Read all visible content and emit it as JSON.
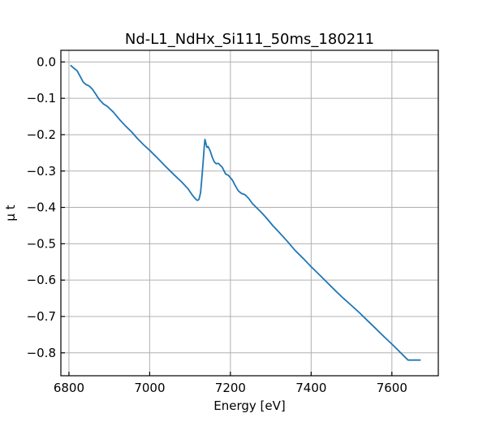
{
  "chart_data": {
    "type": "line",
    "title": "Nd-L1_NdHx_Si111_50ms_180211",
    "xlabel": "Energy [eV]",
    "ylabel": "μ t",
    "xlim": [
      6780,
      7715
    ],
    "ylim": [
      -0.863,
      0.032
    ],
    "xticks": [
      6800,
      7000,
      7200,
      7400,
      7600
    ],
    "yticks": [
      0.0,
      -0.1,
      -0.2,
      -0.3,
      -0.4,
      -0.5,
      -0.6,
      -0.7,
      -0.8
    ],
    "xtick_labels": [
      "6800",
      "7000",
      "7200",
      "7400",
      "7600"
    ],
    "ytick_labels": [
      "0.0",
      "−0.1",
      "−0.2",
      "−0.3",
      "−0.4",
      "−0.5",
      "−0.6",
      "−0.7",
      "−0.8"
    ],
    "grid": true,
    "series": [
      {
        "color": "#1f77b4",
        "x": [
          6805,
          6812,
          6820,
          6828,
          6835,
          6842,
          6850,
          6858,
          6866,
          6875,
          6885,
          6895,
          6910,
          6925,
          6940,
          6955,
          6970,
          6985,
          7000,
          7020,
          7040,
          7060,
          7080,
          7095,
          7105,
          7113,
          7118,
          7122,
          7126,
          7129,
          7132,
          7135,
          7137,
          7139,
          7142,
          7145,
          7150,
          7155,
          7160,
          7165,
          7170,
          7180,
          7188,
          7195,
          7205,
          7212,
          7220,
          7228,
          7236,
          7245,
          7255,
          7265,
          7275,
          7290,
          7305,
          7320,
          7340,
          7360,
          7380,
          7400,
          7420,
          7440,
          7460,
          7480,
          7500,
          7520,
          7540,
          7560,
          7580,
          7600,
          7620,
          7640,
          7660,
          7670
        ],
        "y": [
          -0.01,
          -0.017,
          -0.024,
          -0.04,
          -0.055,
          -0.062,
          -0.066,
          -0.075,
          -0.088,
          -0.103,
          -0.115,
          -0.122,
          -0.138,
          -0.158,
          -0.176,
          -0.192,
          -0.211,
          -0.228,
          -0.243,
          -0.265,
          -0.288,
          -0.31,
          -0.331,
          -0.349,
          -0.365,
          -0.376,
          -0.381,
          -0.378,
          -0.36,
          -0.322,
          -0.28,
          -0.235,
          -0.213,
          -0.222,
          -0.235,
          -0.233,
          -0.245,
          -0.262,
          -0.275,
          -0.28,
          -0.279,
          -0.29,
          -0.308,
          -0.312,
          -0.325,
          -0.34,
          -0.355,
          -0.362,
          -0.365,
          -0.375,
          -0.39,
          -0.401,
          -0.412,
          -0.43,
          -0.45,
          -0.468,
          -0.492,
          -0.518,
          -0.54,
          -0.563,
          -0.585,
          -0.607,
          -0.629,
          -0.65,
          -0.67,
          -0.69,
          -0.712,
          -0.733,
          -0.755,
          -0.776,
          -0.798,
          -0.82,
          -0.82,
          -0.82
        ]
      }
    ]
  }
}
